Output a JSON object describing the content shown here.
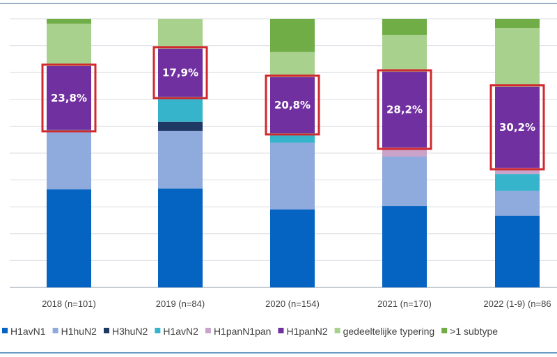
{
  "chart_data": {
    "type": "bar",
    "stacked": true,
    "title": "",
    "xlabel": "",
    "ylabel": "",
    "ylim": [
      0,
      100
    ],
    "y_unit": "%",
    "grid": true,
    "legend_position": "bottom",
    "categories": [
      "2018 (n=101)",
      "2019 (n=84)",
      "2020 (n=154)",
      "2021 (n=170)",
      "2022 (1-9) (n=86"
    ],
    "series": [
      {
        "name": "H1avN1",
        "color": "#0563C1",
        "values": [
          36.5,
          36.8,
          29.0,
          30.3,
          26.7
        ]
      },
      {
        "name": "H1huN2",
        "color": "#8FAADC",
        "values": [
          21.5,
          21.5,
          24.9,
          18.4,
          9.3
        ]
      },
      {
        "name": "H3huN2",
        "color": "#203864",
        "values": [
          0,
          3.4,
          0,
          0,
          0
        ]
      },
      {
        "name": "H1avN2",
        "color": "#35B4CC",
        "values": [
          0.6,
          9.3,
          3.6,
          0,
          6.2
        ]
      },
      {
        "name": "H1panN1pan",
        "color": "#C9A3C9",
        "values": [
          0,
          0,
          0,
          3.4,
          2.3
        ]
      },
      {
        "name": "H1panN2",
        "color": "#7030A0",
        "values": [
          23.8,
          17.9,
          20.8,
          28.2,
          30.2
        ]
      },
      {
        "name": "gedeeltelijke typering",
        "color": "#A9D18E",
        "values": [
          15.8,
          11.1,
          9.3,
          13.7,
          21.9
        ]
      },
      {
        "name": ">1 subtype",
        "color": "#70AD47",
        "values": [
          1.8,
          0,
          12.4,
          6.0,
          3.4
        ]
      }
    ],
    "data_labels": [
      "23,8%",
      "17,9%",
      "20,8%",
      "28,2%",
      "30,2%"
    ],
    "highlight_series": "H1panN2",
    "highlight_color": "#D0282E"
  }
}
